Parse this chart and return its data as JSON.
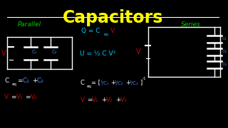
{
  "title": "Capacitors",
  "title_color": "#FFFF00",
  "bg_color": "#000000",
  "parallel_label": "Parallel",
  "parallel_label_color": "#00CC00",
  "series_label": "Series",
  "series_label_color": "#00CC00",
  "formula1_color": "#00CCFF",
  "c1c2_color": "#4488FF",
  "red_color": "#CC0000",
  "white_color": "#FFFFFF",
  "line_color": "#FFFFFF"
}
